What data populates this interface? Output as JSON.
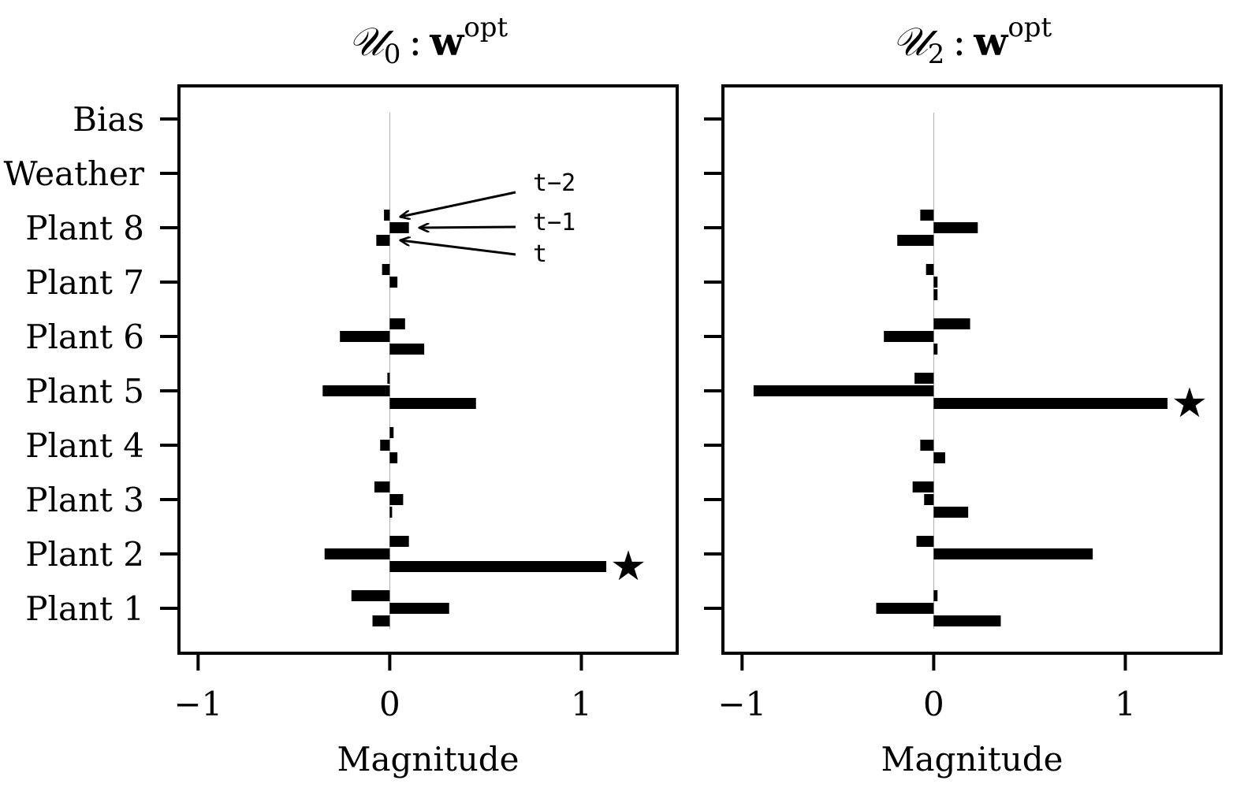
{
  "chart_data": [
    {
      "type": "bar",
      "orientation": "horizontal",
      "title_main": "𝒰",
      "title_sub": "0",
      "title_sep": ":",
      "title_bold": "w",
      "title_sup": "opt",
      "xlabel": "Magnitude",
      "xlim": [
        -1.1,
        1.5
      ],
      "xticks": [
        -1,
        0,
        1
      ],
      "xtick_labels": [
        "−1",
        "0",
        "1"
      ],
      "categories": [
        "Bias",
        "Weather",
        "Plant 8",
        "Plant 7",
        "Plant 6",
        "Plant 5",
        "Plant 4",
        "Plant 3",
        "Plant 2",
        "Plant 1"
      ],
      "series": [
        {
          "name": "t−2",
          "values": [
            0.0,
            0.0,
            -0.03,
            -0.04,
            0.08,
            -0.01,
            0.02,
            -0.08,
            0.1,
            -0.2
          ]
        },
        {
          "name": "t−1",
          "values": [
            0.0,
            0.0,
            0.1,
            0.04,
            -0.26,
            -0.35,
            -0.05,
            0.07,
            -0.34,
            0.31
          ]
        },
        {
          "name": "t",
          "values": [
            0.0,
            0.0,
            -0.07,
            0.0,
            0.18,
            0.45,
            0.04,
            0.01,
            1.13,
            -0.09
          ]
        }
      ],
      "annotations": [
        {
          "text": "t−2",
          "series": 0,
          "category": "Plant 8"
        },
        {
          "text": "t−1",
          "series": 1,
          "category": "Plant 8"
        },
        {
          "text": "t",
          "series": 2,
          "category": "Plant 8"
        }
      ],
      "star": {
        "category": "Plant 2",
        "series": 2,
        "symbol": "★"
      },
      "grid": false,
      "legend": "none"
    },
    {
      "type": "bar",
      "orientation": "horizontal",
      "title_main": "𝒰",
      "title_sub": "2",
      "title_sep": ":",
      "title_bold": "w",
      "title_sup": "opt",
      "xlabel": "Magnitude",
      "xlim": [
        -1.1,
        1.5
      ],
      "xticks": [
        -1,
        0,
        1
      ],
      "xtick_labels": [
        "−1",
        "0",
        "1"
      ],
      "categories": [
        "Bias",
        "Weather",
        "Plant 8",
        "Plant 7",
        "Plant 6",
        "Plant 5",
        "Plant 4",
        "Plant 3",
        "Plant 2",
        "Plant 1"
      ],
      "series": [
        {
          "name": "t−2",
          "values": [
            0.0,
            0.0,
            -0.07,
            -0.04,
            0.19,
            -0.1,
            0.0,
            -0.11,
            -0.09,
            0.02
          ]
        },
        {
          "name": "t−1",
          "values": [
            0.0,
            0.0,
            0.23,
            0.02,
            -0.26,
            -0.94,
            -0.07,
            -0.05,
            0.83,
            -0.3
          ]
        },
        {
          "name": "t",
          "values": [
            0.0,
            0.0,
            -0.19,
            0.02,
            0.02,
            1.22,
            0.06,
            0.18,
            0.0,
            0.35
          ]
        }
      ],
      "annotations": [],
      "star": {
        "category": "Plant 5",
        "series": 2,
        "symbol": "★"
      },
      "grid": false,
      "legend": "none"
    }
  ]
}
